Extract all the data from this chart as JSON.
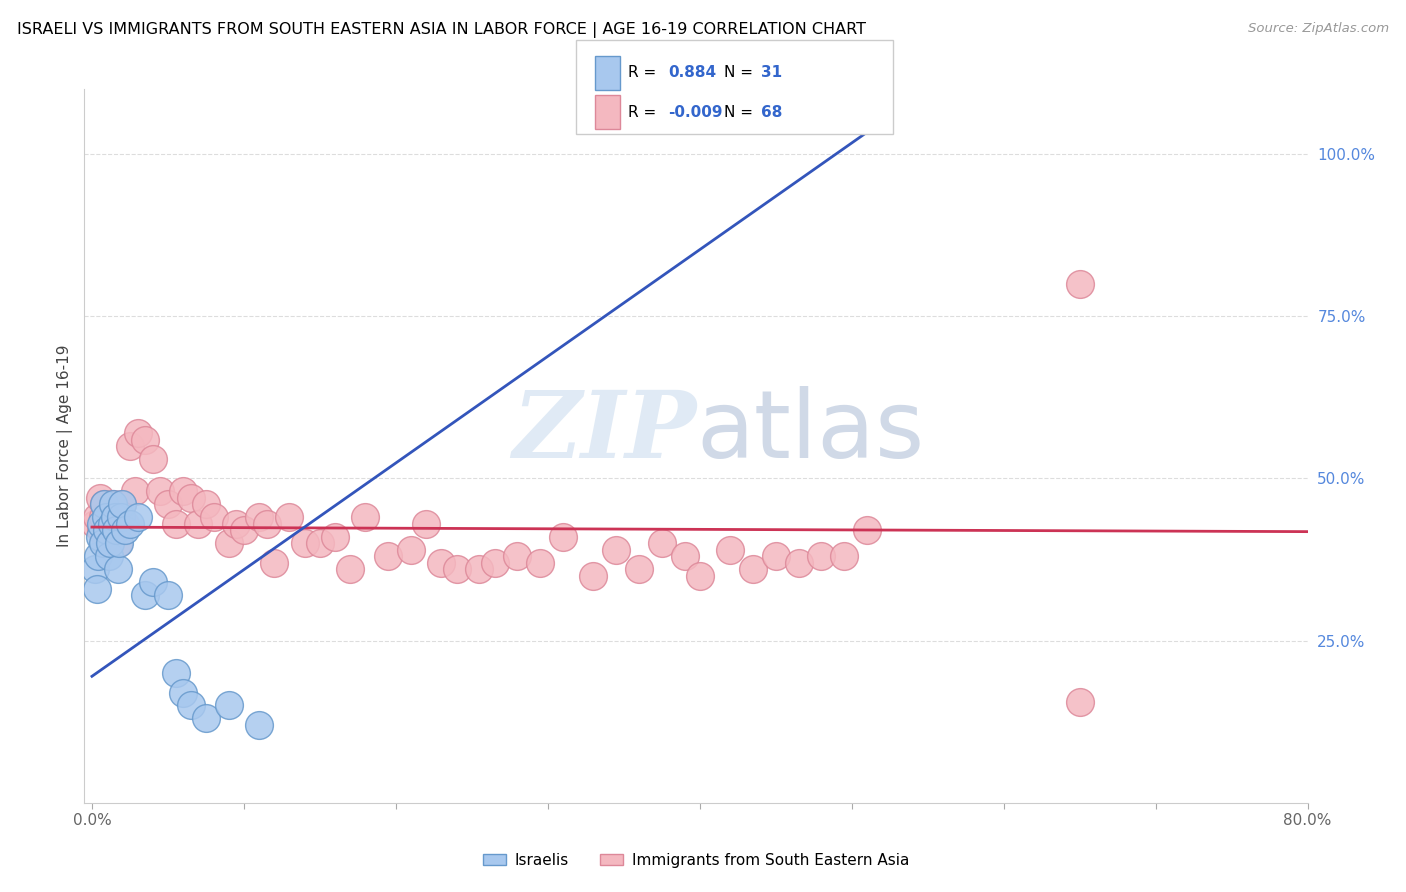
{
  "title": "ISRAELI VS IMMIGRANTS FROM SOUTH EASTERN ASIA IN LABOR FORCE | AGE 16-19 CORRELATION CHART",
  "source": "Source: ZipAtlas.com",
  "ylabel": "In Labor Force | Age 16-19",
  "xlim": [
    -0.005,
    0.8
  ],
  "ylim": [
    0.0,
    1.1
  ],
  "xticks": [
    0.0,
    0.1,
    0.2,
    0.3,
    0.4,
    0.5,
    0.6,
    0.7,
    0.8
  ],
  "xticklabels": [
    "0.0%",
    "",
    "",
    "",
    "",
    "",
    "",
    "",
    "80.0%"
  ],
  "yticks_right": [
    0.25,
    0.5,
    0.75,
    1.0
  ],
  "ytick_labels_right": [
    "25.0%",
    "50.0%",
    "75.0%",
    "100.0%"
  ],
  "blue_color": "#a8c8ee",
  "blue_edge": "#6699cc",
  "pink_color": "#f4b8c0",
  "pink_edge": "#dd8899",
  "trend_blue": "#3355bb",
  "trend_pink": "#cc3355",
  "legend_R_blue": "0.884",
  "legend_N_blue": "31",
  "legend_R_pink": "-0.009",
  "legend_N_pink": "68",
  "legend_label_blue": "Israelis",
  "legend_label_pink": "Immigrants from South Eastern Asia",
  "watermark_zip": "ZIP",
  "watermark_atlas": "atlas",
  "blue_trend_x0": 0.0,
  "blue_trend_y0": 0.195,
  "blue_trend_x1": 0.52,
  "blue_trend_y1": 1.05,
  "pink_trend_x0": 0.0,
  "pink_trend_y0": 0.425,
  "pink_trend_x1": 0.8,
  "pink_trend_y1": 0.418,
  "blue_x": [
    0.002,
    0.003,
    0.004,
    0.005,
    0.006,
    0.007,
    0.008,
    0.009,
    0.01,
    0.011,
    0.012,
    0.013,
    0.014,
    0.015,
    0.016,
    0.017,
    0.018,
    0.019,
    0.02,
    0.022,
    0.025,
    0.03,
    0.035,
    0.04,
    0.05,
    0.055,
    0.06,
    0.065,
    0.075,
    0.09,
    0.11
  ],
  "blue_y": [
    0.36,
    0.33,
    0.38,
    0.41,
    0.43,
    0.4,
    0.46,
    0.44,
    0.42,
    0.38,
    0.4,
    0.43,
    0.46,
    0.44,
    0.42,
    0.36,
    0.4,
    0.44,
    0.46,
    0.42,
    0.43,
    0.44,
    0.32,
    0.34,
    0.32,
    0.2,
    0.17,
    0.15,
    0.13,
    0.15,
    0.12
  ],
  "pink_x": [
    0.002,
    0.003,
    0.005,
    0.006,
    0.007,
    0.008,
    0.009,
    0.01,
    0.011,
    0.012,
    0.013,
    0.014,
    0.015,
    0.016,
    0.017,
    0.018,
    0.02,
    0.022,
    0.025,
    0.028,
    0.03,
    0.035,
    0.04,
    0.045,
    0.05,
    0.055,
    0.06,
    0.065,
    0.07,
    0.075,
    0.08,
    0.09,
    0.095,
    0.1,
    0.11,
    0.115,
    0.12,
    0.13,
    0.14,
    0.15,
    0.16,
    0.17,
    0.18,
    0.195,
    0.21,
    0.22,
    0.23,
    0.24,
    0.255,
    0.265,
    0.28,
    0.295,
    0.31,
    0.33,
    0.345,
    0.36,
    0.375,
    0.39,
    0.4,
    0.42,
    0.435,
    0.45,
    0.465,
    0.48,
    0.495,
    0.51,
    0.65,
    0.65
  ],
  "pink_y": [
    0.43,
    0.44,
    0.47,
    0.42,
    0.44,
    0.46,
    0.4,
    0.43,
    0.41,
    0.44,
    0.42,
    0.46,
    0.44,
    0.43,
    0.4,
    0.44,
    0.46,
    0.43,
    0.55,
    0.48,
    0.57,
    0.56,
    0.53,
    0.48,
    0.46,
    0.43,
    0.48,
    0.47,
    0.43,
    0.46,
    0.44,
    0.4,
    0.43,
    0.42,
    0.44,
    0.43,
    0.37,
    0.44,
    0.4,
    0.4,
    0.41,
    0.36,
    0.44,
    0.38,
    0.39,
    0.43,
    0.37,
    0.36,
    0.36,
    0.37,
    0.38,
    0.37,
    0.41,
    0.35,
    0.39,
    0.36,
    0.4,
    0.38,
    0.35,
    0.39,
    0.36,
    0.38,
    0.37,
    0.38,
    0.38,
    0.42,
    0.8,
    0.155
  ]
}
